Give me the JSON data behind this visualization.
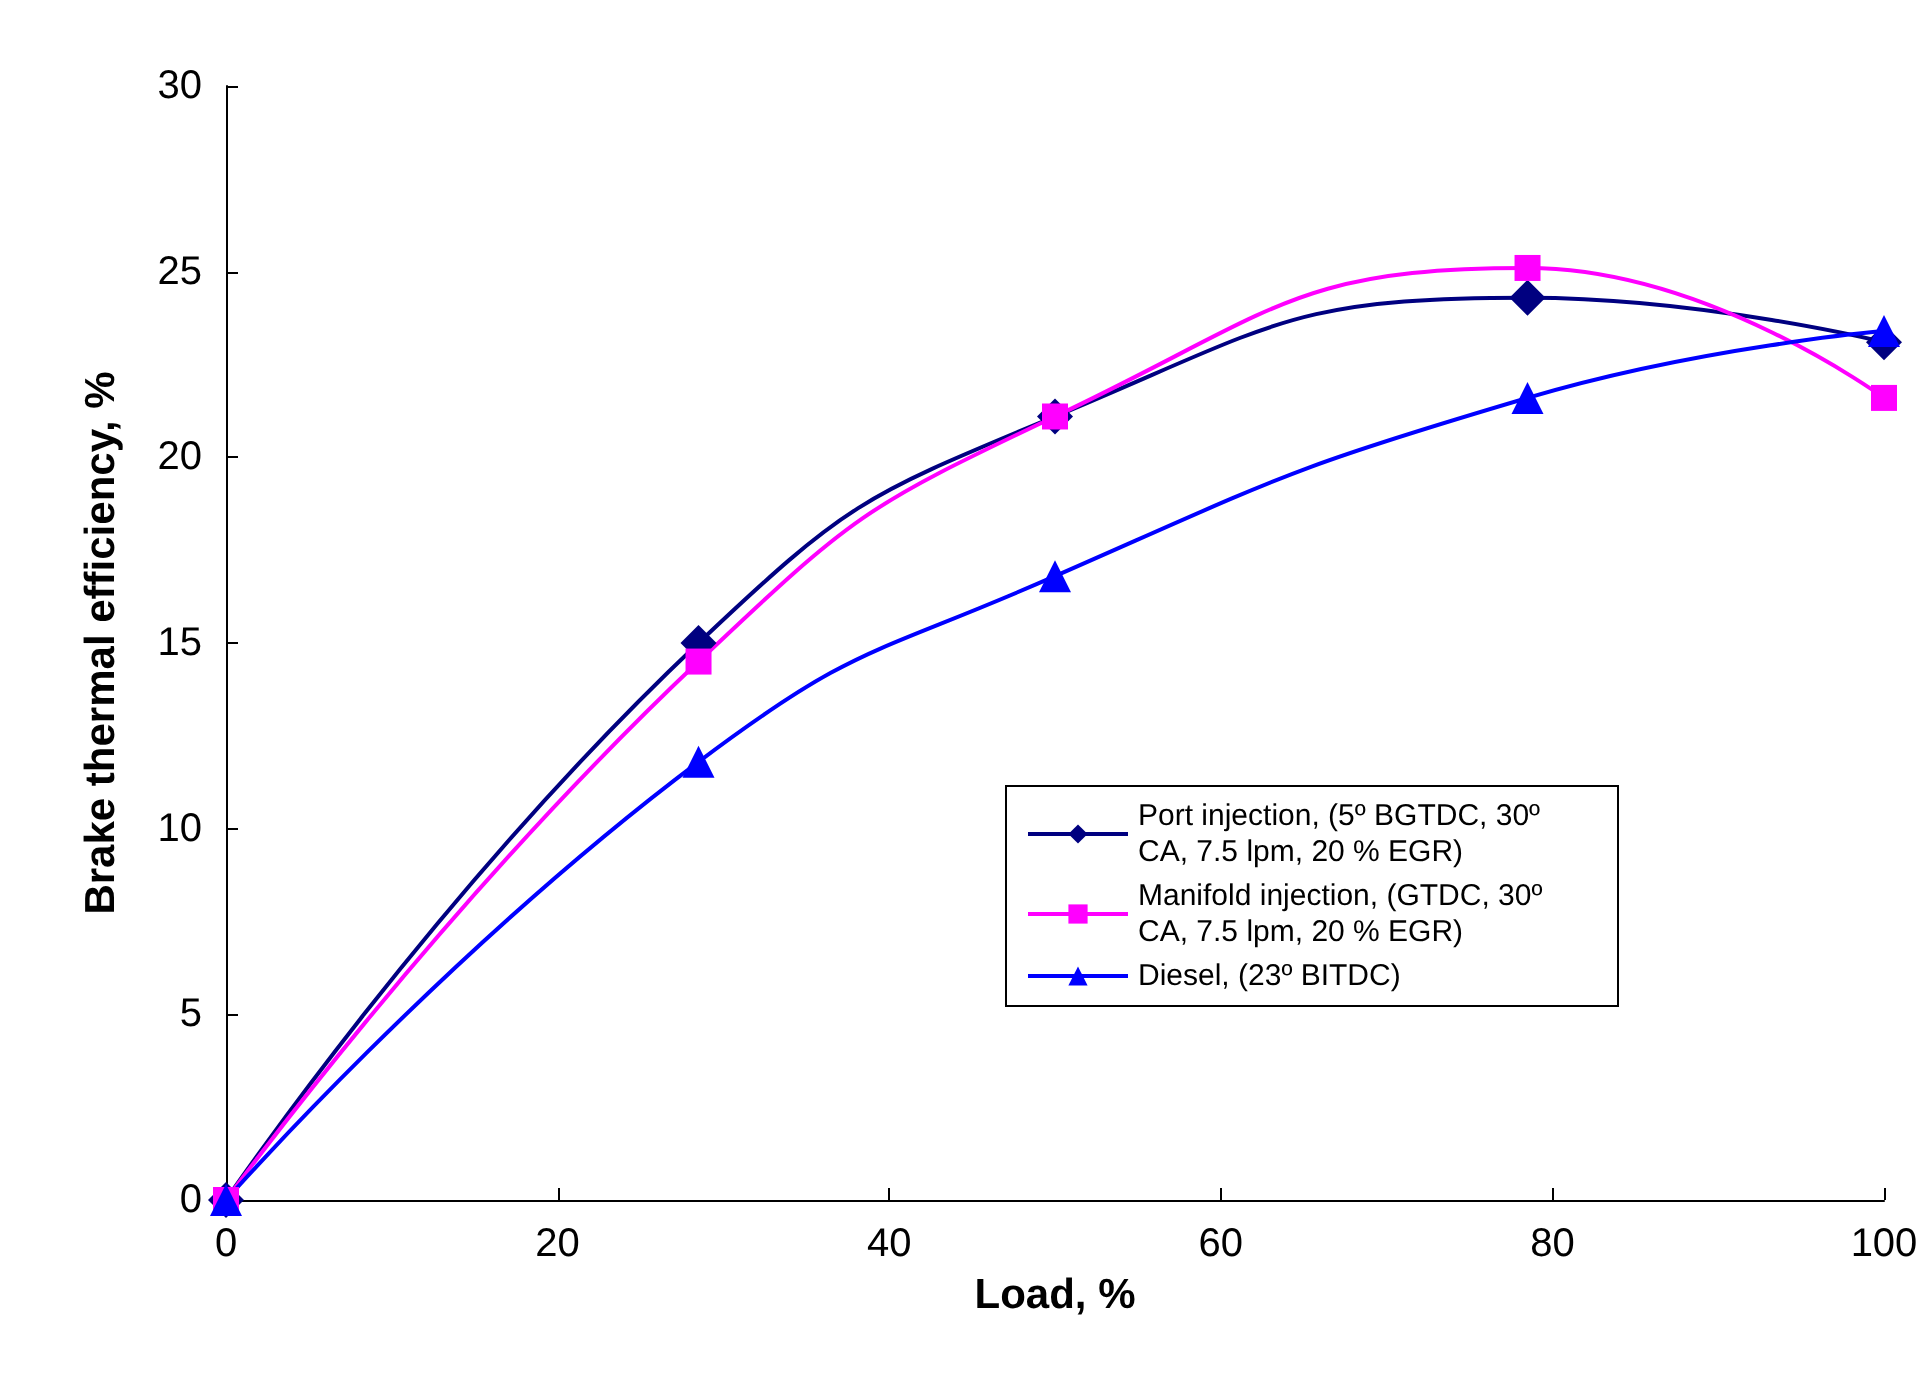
{
  "chart_data": {
    "type": "line",
    "xlabel": "Load, %",
    "ylabel": "Brake thermal efficiency, %",
    "x": [
      0,
      28.5,
      50,
      78.5,
      100
    ],
    "series": [
      {
        "name": "Port injection, (5º BGTDC, 30º CA, 7.5 lpm, 20 % EGR)",
        "color": "#000080",
        "marker": "diamond",
        "values": [
          0,
          15.0,
          21.1,
          24.3,
          23.1
        ]
      },
      {
        "name": "Manifold injection, (GTDC, 30º CA, 7.5 lpm, 20 % EGR)",
        "color": "#ff00ff",
        "marker": "square",
        "values": [
          0,
          14.5,
          21.1,
          25.1,
          21.6
        ]
      },
      {
        "name": "Diesel, (23º BITDC)",
        "color": "#0000ff",
        "marker": "triangle",
        "values": [
          0,
          11.8,
          16.8,
          21.6,
          23.4
        ]
      }
    ],
    "xlim": [
      0,
      100
    ],
    "xticks": [
      0,
      20,
      40,
      60,
      80,
      100
    ],
    "ylim": [
      0,
      30
    ],
    "yticks": [
      0,
      5,
      10,
      15,
      20,
      25,
      30
    ],
    "grid": false,
    "legend": "bottom right",
    "line_style": "solid"
  }
}
